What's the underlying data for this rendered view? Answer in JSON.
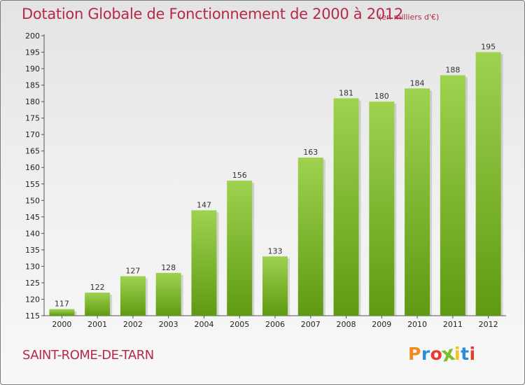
{
  "header": {
    "title": "Dotation Globale de Fonctionnement de 2000 à 2012",
    "subtitle": "(en milliers d'€)"
  },
  "footer": {
    "commune": "SAINT-ROME-DE-TARN",
    "logo_text": "Proxiti"
  },
  "colors": {
    "accent": "#b42a48",
    "bar_top": "#9ed24f",
    "bar_bottom": "#5f9a12"
  },
  "chart_data": {
    "type": "bar",
    "categories": [
      "2000",
      "2001",
      "2002",
      "2003",
      "2004",
      "2005",
      "2006",
      "2007",
      "2008",
      "2009",
      "2010",
      "2011",
      "2012"
    ],
    "values": [
      117,
      122,
      127,
      128,
      147,
      156,
      133,
      163,
      181,
      180,
      184,
      188,
      195
    ],
    "ylim": [
      115,
      200
    ],
    "ytick_step": 5,
    "grid": false
  }
}
